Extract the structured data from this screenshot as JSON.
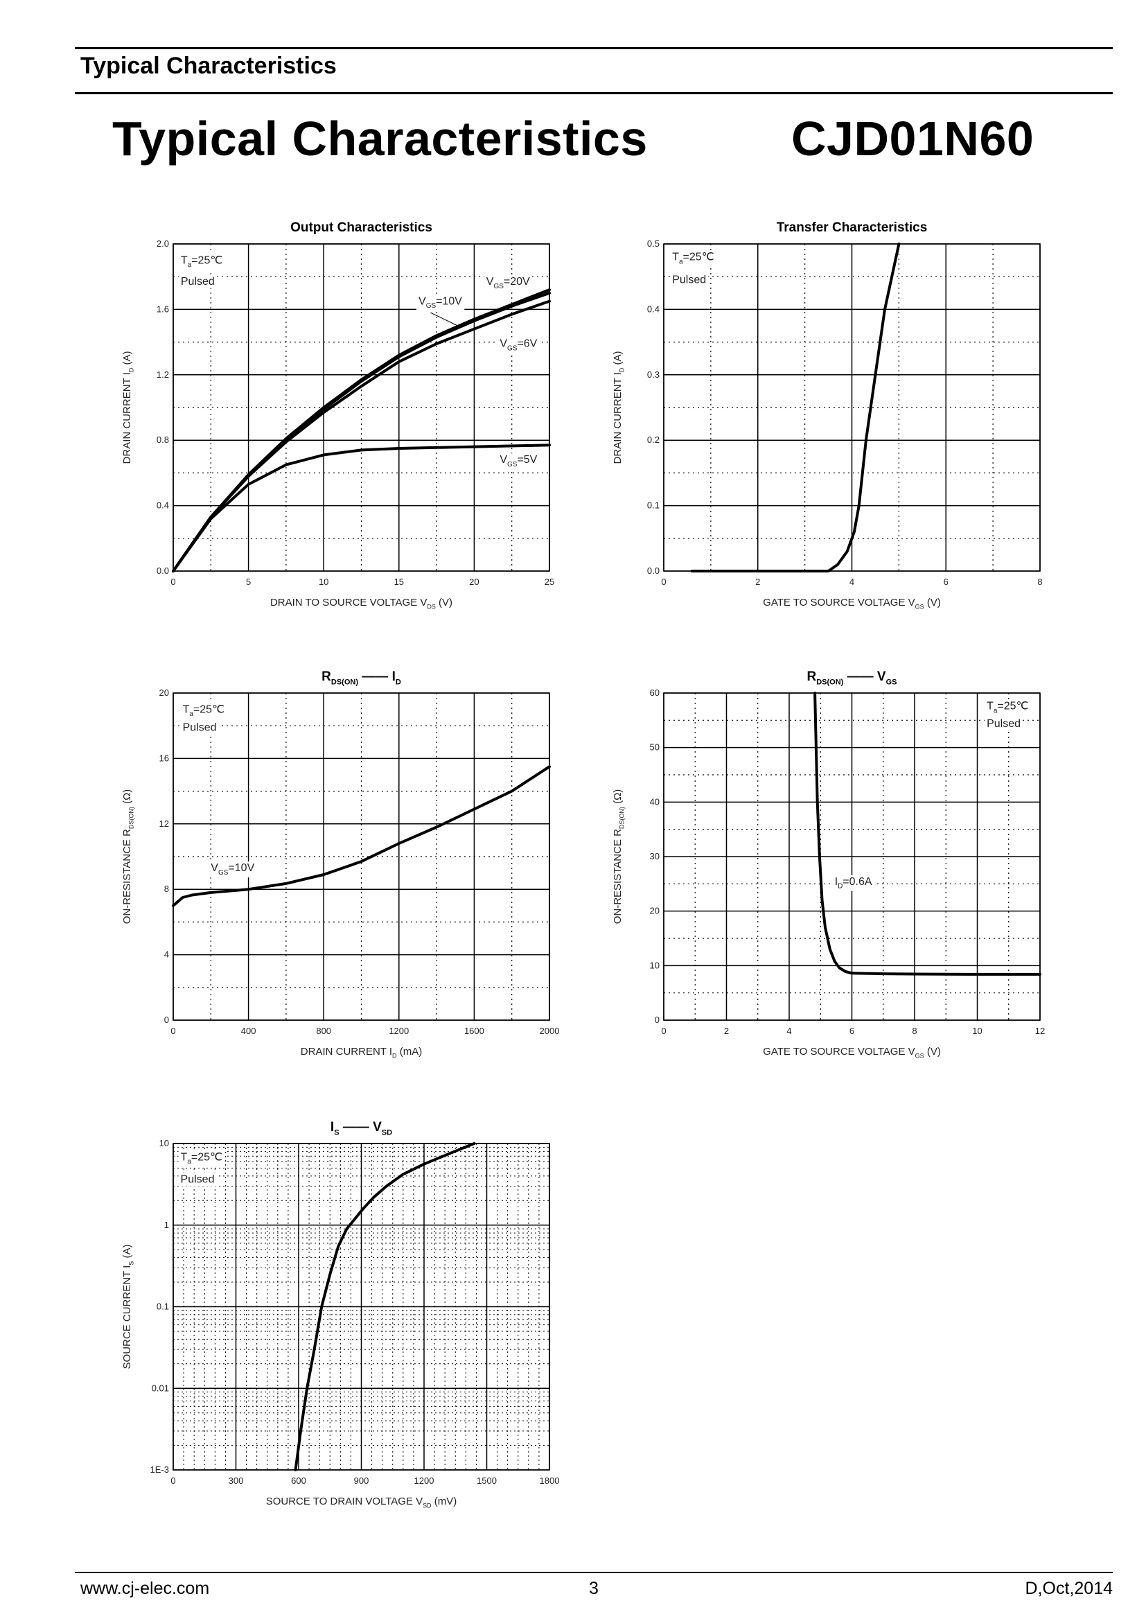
{
  "header": {
    "section_title": "Typical Characteristics"
  },
  "page_title": "Typical Characteristics",
  "part_number": "CJD01N60",
  "footer": {
    "website": "www.cj-elec.com",
    "page": "3",
    "revision": "D,Oct,2014"
  },
  "chart_data": [
    {
      "type": "line",
      "title": [
        [
          "Output Characteristics",
          ""
        ]
      ],
      "xlabel": [
        [
          "DRAIN TO SOURCE VOLTAGE    V",
          ""
        ],
        [
          "DS",
          "sub"
        ],
        [
          "    (V)",
          ""
        ]
      ],
      "ylabel": [
        [
          "DRAIN CURRENT    I",
          ""
        ],
        [
          "D",
          "sub"
        ],
        [
          "    (A)",
          ""
        ]
      ],
      "xlim": [
        0,
        25
      ],
      "ylim": [
        0,
        2.0
      ],
      "yscale": "linear",
      "xticks": [
        "0",
        "5",
        "10",
        "15",
        "20",
        "25"
      ],
      "yticks": [
        "0.0",
        "0.4",
        "0.8",
        "1.2",
        "1.6",
        "2.0"
      ],
      "grid": true,
      "annotations": [
        {
          "parts": [
            [
              "T",
              ""
            ],
            [
              "a",
              "sub"
            ],
            [
              "=25℃",
              ""
            ]
          ],
          "at": [
            0.5,
            1.88
          ]
        },
        {
          "parts": [
            [
              "Pulsed",
              ""
            ]
          ],
          "at": [
            0.5,
            1.75
          ]
        },
        {
          "parts": [
            [
              "V",
              ""
            ],
            [
              "GS",
              "sub"
            ],
            [
              "=20V",
              ""
            ]
          ],
          "at": [
            20.8,
            1.75
          ]
        },
        {
          "parts": [
            [
              "V",
              ""
            ],
            [
              "GS",
              "sub"
            ],
            [
              "=10V",
              ""
            ]
          ],
          "at": [
            16.3,
            1.63
          ]
        },
        {
          "parts": [
            [
              "V",
              ""
            ],
            [
              "GS",
              "sub"
            ],
            [
              "=6V",
              ""
            ]
          ],
          "at": [
            21.7,
            1.37
          ]
        },
        {
          "parts": [
            [
              "V",
              ""
            ],
            [
              "GS",
              "sub"
            ],
            [
              "=5V",
              ""
            ]
          ],
          "at": [
            21.7,
            0.66
          ]
        }
      ],
      "series": [
        {
          "name": "VGS=20V",
          "x": [
            0,
            2.5,
            5,
            7.5,
            10,
            12.5,
            15,
            17.5,
            20,
            22.5,
            25
          ],
          "y": [
            0,
            0.33,
            0.59,
            0.81,
            1.0,
            1.17,
            1.32,
            1.44,
            1.54,
            1.63,
            1.72
          ]
        },
        {
          "name": "VGS=10V",
          "x": [
            0,
            2.5,
            5,
            7.5,
            10,
            12.5,
            15,
            17.5,
            20,
            22.5,
            25
          ],
          "y": [
            0,
            0.33,
            0.58,
            0.8,
            0.99,
            1.16,
            1.31,
            1.43,
            1.53,
            1.62,
            1.7
          ]
        },
        {
          "name": "VGS=6V",
          "x": [
            0,
            2.5,
            5,
            7.5,
            10,
            12.5,
            15,
            17.5,
            20,
            22.5,
            25
          ],
          "y": [
            0,
            0.33,
            0.58,
            0.79,
            0.97,
            1.13,
            1.28,
            1.39,
            1.48,
            1.57,
            1.65
          ]
        },
        {
          "name": "VGS=5V",
          "x": [
            0,
            2.5,
            5,
            7.5,
            10,
            12.5,
            15,
            20,
            25
          ],
          "y": [
            0,
            0.32,
            0.53,
            0.65,
            0.71,
            0.74,
            0.75,
            0.76,
            0.77
          ]
        }
      ]
    },
    {
      "type": "line",
      "title": [
        [
          "Transfer Characteristics",
          ""
        ]
      ],
      "xlabel": [
        [
          "GATE TO SOURCE VOLTAGE    V",
          ""
        ],
        [
          "GS",
          "sub"
        ],
        [
          "    (V)",
          ""
        ]
      ],
      "ylabel": [
        [
          "DRAIN CURRENT    I",
          ""
        ],
        [
          "D",
          "sub"
        ],
        [
          "    (A)",
          ""
        ]
      ],
      "xlim": [
        0,
        8
      ],
      "ylim": [
        0,
        0.5
      ],
      "yscale": "linear",
      "xticks": [
        "0",
        "2",
        "4",
        "6",
        "8"
      ],
      "yticks": [
        "0.0",
        "0.1",
        "0.2",
        "0.3",
        "0.4",
        "0.5"
      ],
      "grid": true,
      "annotations": [
        {
          "parts": [
            [
              "T",
              ""
            ],
            [
              "a",
              "sub"
            ],
            [
              "=25℃",
              ""
            ]
          ],
          "at": [
            0.18,
            0.475
          ]
        },
        {
          "parts": [
            [
              "Pulsed",
              ""
            ]
          ],
          "at": [
            0.18,
            0.44
          ]
        }
      ],
      "series": [
        {
          "name": "ID",
          "x": [
            0.6,
            3.5,
            3.7,
            3.9,
            4.05,
            4.15,
            4.3,
            4.5,
            4.7,
            4.85,
            5.0
          ],
          "y": [
            0,
            0,
            0.01,
            0.03,
            0.06,
            0.1,
            0.2,
            0.3,
            0.4,
            0.45,
            0.5
          ]
        }
      ]
    },
    {
      "type": "line",
      "title": [
        [
          "R",
          ""
        ],
        [
          "DS(ON)",
          "sub"
        ],
        [
          "   ——   ",
          ""
        ],
        [
          "I",
          ""
        ],
        [
          "D",
          "sub"
        ]
      ],
      "xlabel": [
        [
          "DRAIN CURRENT    I",
          ""
        ],
        [
          "D",
          "sub"
        ],
        [
          "    (mA)",
          ""
        ]
      ],
      "ylabel": [
        [
          "ON-RESISTANCE    R",
          ""
        ],
        [
          "DS(ON)",
          "sub"
        ],
        [
          "    (Ω)",
          ""
        ]
      ],
      "xlim": [
        0,
        2000
      ],
      "ylim": [
        0,
        20
      ],
      "yscale": "linear",
      "xticks": [
        "0",
        "400",
        "800",
        "1200",
        "1600",
        "2000"
      ],
      "yticks": [
        "0",
        "4",
        "8",
        "12",
        "16",
        "20"
      ],
      "grid": true,
      "annotations": [
        {
          "parts": [
            [
              "T",
              ""
            ],
            [
              "a",
              "sub"
            ],
            [
              "=25℃",
              ""
            ]
          ],
          "at": [
            50,
            18.8
          ]
        },
        {
          "parts": [
            [
              "Pulsed",
              ""
            ]
          ],
          "at": [
            50,
            17.7
          ]
        },
        {
          "parts": [
            [
              "V",
              ""
            ],
            [
              "GS",
              "sub"
            ],
            [
              "=10V",
              ""
            ]
          ],
          "at": [
            200,
            9.1
          ]
        }
      ],
      "series": [
        {
          "name": "VGS=10V",
          "x": [
            0,
            50,
            100,
            200,
            400,
            600,
            800,
            1000,
            1200,
            1400,
            1600,
            1800,
            2000
          ],
          "y": [
            7.0,
            7.5,
            7.65,
            7.8,
            8.0,
            8.35,
            8.9,
            9.7,
            10.8,
            11.8,
            12.9,
            14.0,
            15.5
          ]
        }
      ]
    },
    {
      "type": "line",
      "title": [
        [
          "R",
          ""
        ],
        [
          "DS(ON)",
          "sub"
        ],
        [
          "   ——   ",
          ""
        ],
        [
          "V",
          ""
        ],
        [
          "GS",
          "sub"
        ]
      ],
      "xlabel": [
        [
          "GATE TO SOURCE VOLTAGE    V",
          ""
        ],
        [
          "GS",
          "sub"
        ],
        [
          "    (V)",
          ""
        ]
      ],
      "ylabel": [
        [
          "ON-RESISTANCE    R",
          ""
        ],
        [
          "DS(ON)",
          "sub"
        ],
        [
          "    (Ω)",
          ""
        ]
      ],
      "xlim": [
        0,
        12
      ],
      "ylim": [
        0,
        60
      ],
      "yscale": "linear",
      "xticks": [
        "0",
        "2",
        "4",
        "6",
        "8",
        "10",
        "12"
      ],
      "yticks": [
        "0",
        "10",
        "20",
        "30",
        "40",
        "50",
        "60"
      ],
      "grid": true,
      "annotations": [
        {
          "parts": [
            [
              "T",
              ""
            ],
            [
              "a",
              "sub"
            ],
            [
              "=25℃",
              ""
            ]
          ],
          "at": [
            10.3,
            57
          ]
        },
        {
          "parts": [
            [
              "Pulsed",
              ""
            ]
          ],
          "at": [
            10.3,
            53.8
          ]
        },
        {
          "parts": [
            [
              "I",
              ""
            ],
            [
              "D",
              "sub"
            ],
            [
              "=0.6A",
              ""
            ]
          ],
          "at": [
            5.45,
            24.8
          ]
        }
      ],
      "series": [
        {
          "name": "ID=0.6A",
          "x": [
            4.82,
            4.86,
            4.9,
            4.97,
            5.05,
            5.15,
            5.3,
            5.45,
            5.6,
            5.8,
            6.0,
            7.0,
            8.0,
            10.0,
            12.0
          ],
          "y": [
            60,
            50,
            40,
            30,
            22,
            17,
            13,
            10.8,
            9.6,
            8.9,
            8.6,
            8.5,
            8.45,
            8.4,
            8.4
          ]
        }
      ]
    },
    {
      "type": "line",
      "title": [
        [
          "I",
          ""
        ],
        [
          "S",
          "sub"
        ],
        [
          "   ——   ",
          ""
        ],
        [
          "V",
          ""
        ],
        [
          "SD",
          "sub"
        ]
      ],
      "xlabel": [
        [
          "SOURCE TO DRAIN VOLTAGE    V",
          ""
        ],
        [
          "SD",
          "sub"
        ],
        [
          "    (mV)",
          ""
        ]
      ],
      "ylabel": [
        [
          "SOURCE CURRENT    I",
          ""
        ],
        [
          "S",
          "sub"
        ],
        [
          "    (A)",
          ""
        ]
      ],
      "xlim": [
        0,
        1800
      ],
      "ylim": [
        0.001,
        10
      ],
      "yscale": "log",
      "xticks": [
        "0",
        "300",
        "600",
        "900",
        "1200",
        "1500",
        "1800"
      ],
      "yticks": [
        "1E-3",
        "0.01",
        "0.1",
        "1",
        "10"
      ],
      "grid": true,
      "annotations": [
        {
          "parts": [
            [
              "T",
              ""
            ],
            [
              "a",
              "sub"
            ],
            [
              "=25℃",
              ""
            ]
          ],
          "at": [
            35,
            6.2
          ]
        },
        {
          "parts": [
            [
              "Pulsed",
              ""
            ]
          ],
          "at": [
            35,
            3.3
          ]
        }
      ],
      "series": [
        {
          "name": "IS",
          "x": [
            585,
            610,
            640,
            675,
            710,
            750,
            790,
            830,
            870,
            910,
            960,
            1020,
            1100,
            1200,
            1320,
            1440
          ],
          "y": [
            0.001,
            0.003,
            0.01,
            0.03,
            0.1,
            0.25,
            0.55,
            0.9,
            1.2,
            1.6,
            2.2,
            3.0,
            4.2,
            5.6,
            7.5,
            10
          ]
        }
      ]
    }
  ]
}
